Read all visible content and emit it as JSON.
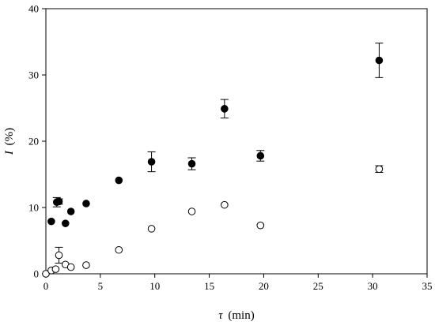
{
  "chart_data": {
    "type": "scatter",
    "title": "",
    "xlabel": {
      "symbol": "τ",
      "unit": "(min)"
    },
    "ylabel": {
      "symbol": "I",
      "unit": "(%)"
    },
    "xlim": [
      0,
      35
    ],
    "ylim": [
      0,
      40
    ],
    "x_ticks": [
      "0",
      "5",
      "10",
      "15",
      "20",
      "25",
      "30",
      "35"
    ],
    "y_ticks": [
      "0",
      "10",
      "20",
      "30",
      "40"
    ],
    "grid": false,
    "series": [
      {
        "marker": "filled-circle",
        "color": "#000000",
        "points": [
          {
            "x": 0.5,
            "y": 7.9,
            "err": 0.0
          },
          {
            "x": 1.0,
            "y": 10.8,
            "err": 0.7
          },
          {
            "x": 1.2,
            "y": 10.9,
            "err": 0.4
          },
          {
            "x": 1.8,
            "y": 7.6,
            "err": 0.0
          },
          {
            "x": 2.3,
            "y": 9.4,
            "err": 0.0
          },
          {
            "x": 3.7,
            "y": 10.6,
            "err": 0.0
          },
          {
            "x": 6.7,
            "y": 14.1,
            "err": 0.0
          },
          {
            "x": 9.7,
            "y": 16.9,
            "err": 1.5
          },
          {
            "x": 13.4,
            "y": 16.6,
            "err": 0.9
          },
          {
            "x": 16.4,
            "y": 24.9,
            "err": 1.4
          },
          {
            "x": 19.7,
            "y": 17.8,
            "err": 0.8
          },
          {
            "x": 30.6,
            "y": 32.2,
            "err": 2.6
          }
        ]
      },
      {
        "marker": "open-circle",
        "color": "#000000",
        "points": [
          {
            "x": 0.0,
            "y": 0.0,
            "err": 0.0
          },
          {
            "x": 0.5,
            "y": 0.5,
            "err": 0.0
          },
          {
            "x": 0.9,
            "y": 0.7,
            "err": 0.0
          },
          {
            "x": 1.2,
            "y": 2.8,
            "err": 1.2
          },
          {
            "x": 1.8,
            "y": 1.4,
            "err": 0.0
          },
          {
            "x": 2.3,
            "y": 1.0,
            "err": 0.0
          },
          {
            "x": 3.7,
            "y": 1.3,
            "err": 0.0
          },
          {
            "x": 6.7,
            "y": 3.6,
            "err": 0.0
          },
          {
            "x": 9.7,
            "y": 6.8,
            "err": 0.0
          },
          {
            "x": 13.4,
            "y": 9.4,
            "err": 0.0
          },
          {
            "x": 16.4,
            "y": 10.4,
            "err": 0.0
          },
          {
            "x": 19.7,
            "y": 7.3,
            "err": 0.0
          },
          {
            "x": 30.6,
            "y": 15.8,
            "err": 0.5
          }
        ]
      }
    ]
  }
}
